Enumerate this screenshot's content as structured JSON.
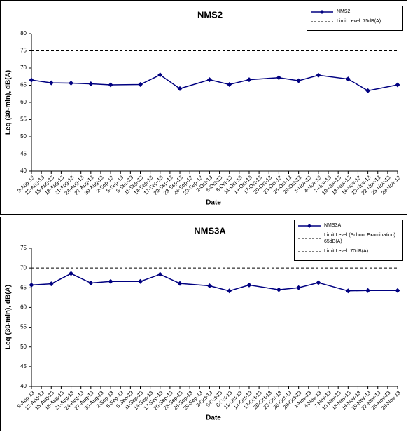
{
  "chart_data": [
    {
      "type": "line",
      "title": "NMS2",
      "xlabel": "Date",
      "ylabel": "Leq (30-min), dB(A)",
      "xticks": [
        "9-Aug-13",
        "12-Aug-13",
        "15-Aug-13",
        "18-Aug-13",
        "21-Aug-13",
        "24-Aug-13",
        "27-Aug-13",
        "30-Aug-13",
        "2-Sep-13",
        "5-Sep-13",
        "8-Sep-13",
        "11-Sep-13",
        "14-Sep-13",
        "17-Sep-13",
        "20-Sep-13",
        "23-Sep-13",
        "26-Sep-13",
        "29-Sep-13",
        "2-Oct-13",
        "5-Oct-13",
        "8-Oct-13",
        "11-Oct-13",
        "14-Oct-13",
        "17-Oct-13",
        "20-Oct-13",
        "23-Oct-13",
        "26-Oct-13",
        "29-Oct-13",
        "1-Nov-13",
        "4-Nov-13",
        "7-Nov-13",
        "10-Nov-13",
        "13-Nov-13",
        "16-Nov-13",
        "19-Nov-13",
        "22-Nov-13",
        "25-Nov-13",
        "28-Nov-13"
      ],
      "x": [
        "9-Aug-13",
        "15-Aug-13",
        "21-Aug-13",
        "27-Aug-13",
        "2-Sep-13",
        "11-Sep-13",
        "17-Sep-13",
        "23-Sep-13",
        "2-Oct-13",
        "8-Oct-13",
        "14-Oct-13",
        "23-Oct-13",
        "29-Oct-13",
        "4-Nov-13",
        "13-Nov-13",
        "19-Nov-13",
        "28-Nov-13"
      ],
      "series": [
        {
          "name": "NMS2",
          "color": "#000080",
          "values": [
            66.5,
            65.7,
            65.6,
            65.4,
            65.1,
            65.2,
            68.0,
            64.0,
            66.6,
            65.2,
            66.6,
            67.2,
            66.3,
            67.9,
            66.8,
            63.4,
            65.1
          ]
        }
      ],
      "limit_lines": [
        {
          "name": "Limit Level: 75dB(A)",
          "value": 75
        }
      ],
      "ylim": [
        40,
        80
      ],
      "yticks": [
        40,
        45,
        50,
        55,
        60,
        65,
        70,
        75,
        80
      ]
    },
    {
      "type": "line",
      "title": "NMS3A",
      "xlabel": "Date",
      "ylabel": "Leq (30-min), dB(A)",
      "xticks": [
        "9-Aug-13",
        "12-Aug-13",
        "15-Aug-13",
        "18-Aug-13",
        "21-Aug-13",
        "24-Aug-13",
        "27-Aug-13",
        "30-Aug-13",
        "2-Sep-13",
        "5-Sep-13",
        "8-Sep-13",
        "11-Sep-13",
        "14-Sep-13",
        "17-Sep-13",
        "20-Sep-13",
        "23-Sep-13",
        "26-Sep-13",
        "29-Sep-13",
        "2-Oct-13",
        "5-Oct-13",
        "8-Oct-13",
        "11-Oct-13",
        "14-Oct-13",
        "17-Oct-13",
        "20-Oct-13",
        "23-Oct-13",
        "26-Oct-13",
        "29-Oct-13",
        "1-Nov-13",
        "4-Nov-13",
        "7-Nov-13",
        "10-Nov-13",
        "13-Nov-13",
        "16-Nov-13",
        "19-Nov-13",
        "22-Nov-13",
        "25-Nov-13",
        "28-Nov-13"
      ],
      "x": [
        "9-Aug-13",
        "15-Aug-13",
        "21-Aug-13",
        "27-Aug-13",
        "2-Sep-13",
        "11-Sep-13",
        "17-Sep-13",
        "23-Sep-13",
        "2-Oct-13",
        "8-Oct-13",
        "14-Oct-13",
        "23-Oct-13",
        "29-Oct-13",
        "4-Nov-13",
        "13-Nov-13",
        "19-Nov-13",
        "28-Nov-13"
      ],
      "series": [
        {
          "name": "NMS3A",
          "color": "#000080",
          "values": [
            65.7,
            66.0,
            68.6,
            66.2,
            66.6,
            66.6,
            68.4,
            66.1,
            65.5,
            64.2,
            65.7,
            64.5,
            65.0,
            66.3,
            64.2,
            64.3,
            64.3
          ]
        }
      ],
      "limit_lines": [
        {
          "name": "Limit Level (School Examination): 65dB(A)"
        },
        {
          "name": "Limit Level: 70dB(A)",
          "value": 70
        }
      ],
      "ylim": [
        40,
        75
      ],
      "yticks": [
        40,
        45,
        50,
        55,
        60,
        65,
        70,
        75
      ]
    }
  ]
}
